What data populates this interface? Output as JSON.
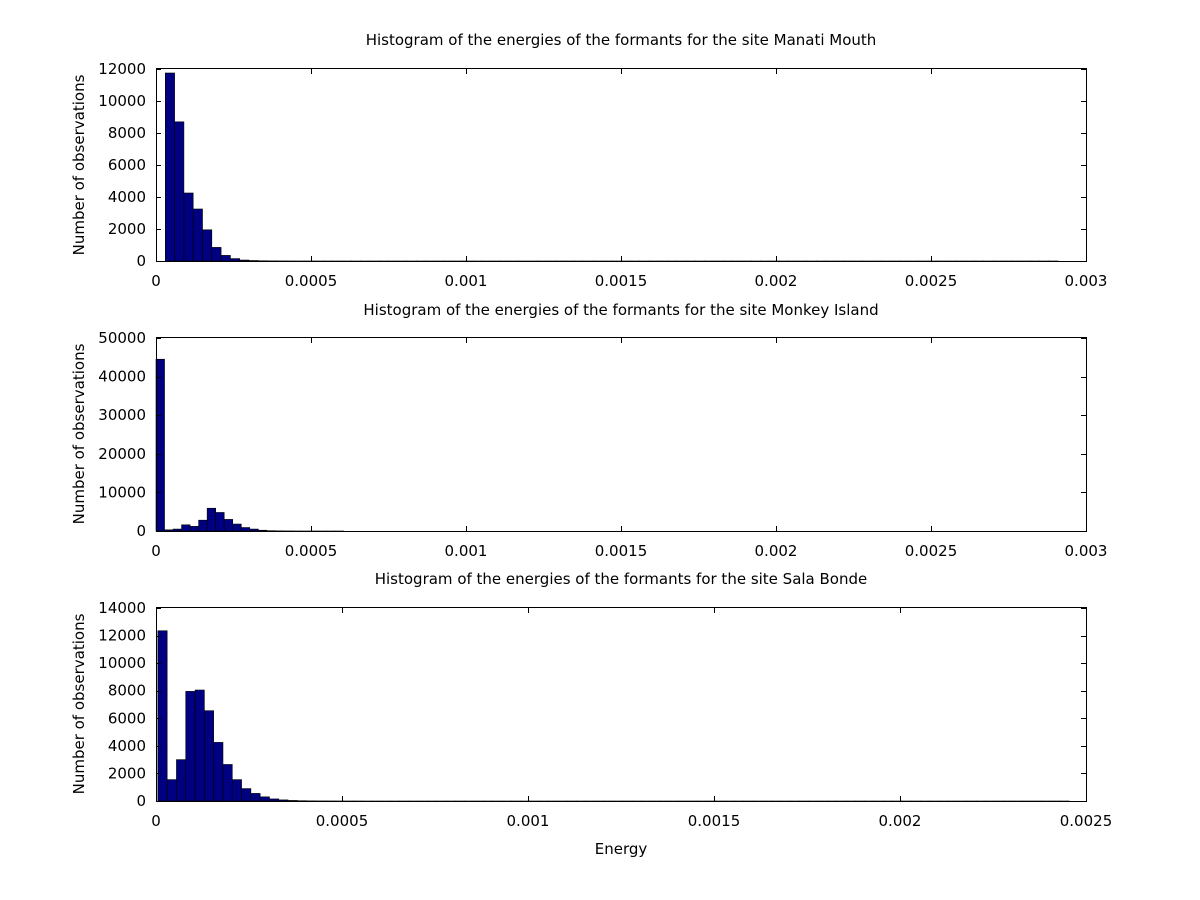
{
  "chart_data": [
    {
      "type": "bar",
      "title": "Histogram of the energies of the formants for the site Manati Mouth",
      "xlabel": "",
      "ylabel": "Number of observations",
      "xlim": [
        0,
        0.003
      ],
      "ylim": [
        0,
        12000
      ],
      "x_ticks": [
        "0",
        "0.0005",
        "0.001",
        "0.0015",
        "0.002",
        "0.0025",
        "0.003"
      ],
      "y_ticks": [
        "0",
        "2000",
        "4000",
        "6000",
        "8000",
        "10000",
        "12000"
      ],
      "bar_color": "#000080",
      "bin_width": 3e-05,
      "bin_start": 3e-05,
      "values": [
        11750,
        8700,
        4250,
        3250,
        1950,
        850,
        350,
        150,
        60,
        30,
        15,
        8,
        5,
        3,
        2,
        2,
        1,
        1,
        1,
        1,
        1,
        1,
        1,
        1,
        1,
        1,
        1,
        1,
        1,
        1,
        1,
        1,
        1,
        1,
        1,
        1,
        1,
        1,
        1,
        1,
        1,
        1,
        1,
        1,
        1,
        1,
        1,
        1,
        1,
        1,
        1,
        1,
        1,
        1,
        1,
        1,
        1,
        1,
        1,
        1,
        1,
        1,
        1,
        1,
        1,
        1,
        1,
        1,
        1,
        1,
        1,
        1,
        1,
        1,
        1,
        1,
        1,
        1,
        1,
        1,
        1,
        1,
        1,
        1,
        1,
        1,
        1,
        1,
        1,
        1,
        1,
        1,
        1,
        1,
        1,
        1
      ]
    },
    {
      "type": "bar",
      "title": "Histogram of the energies of the formants for the site Monkey Island",
      "xlabel": "",
      "ylabel": "Number of observations",
      "xlim": [
        0,
        0.003
      ],
      "ylim": [
        0,
        50000
      ],
      "x_ticks": [
        "0",
        "0.0005",
        "0.001",
        "0.0015",
        "0.002",
        "0.0025",
        "0.003"
      ],
      "y_ticks": [
        "0",
        "10000",
        "20000",
        "30000",
        "40000",
        "50000"
      ],
      "bar_color": "#000080",
      "bin_width": 2.75e-05,
      "bin_start": 0,
      "values": [
        44500,
        300,
        500,
        1600,
        1200,
        2800,
        5900,
        4800,
        3000,
        1800,
        900,
        500,
        200,
        80,
        40,
        20,
        10,
        6,
        4,
        3,
        2,
        2,
        1,
        1,
        1,
        1,
        1,
        1,
        1,
        1,
        1,
        1,
        1,
        1,
        1,
        1,
        1,
        1,
        1,
        1,
        1,
        1,
        1,
        1,
        1,
        1,
        1,
        1,
        1,
        1,
        1,
        1,
        1,
        1,
        1,
        1,
        1,
        1,
        1,
        1,
        1,
        1,
        1,
        1,
        1,
        1,
        1,
        1,
        1,
        1,
        1,
        1,
        1,
        1,
        1,
        1,
        1,
        1,
        1,
        1,
        1,
        1,
        1,
        1,
        1,
        1,
        1,
        1,
        1,
        1,
        1,
        1,
        1,
        1
      ]
    },
    {
      "type": "bar",
      "title": "Histogram of the energies of the formants for the site Sala Bonde",
      "xlabel": "Energy",
      "ylabel": "Number of observations",
      "xlim": [
        0,
        0.0025
      ],
      "ylim": [
        0,
        14000
      ],
      "x_ticks": [
        "0",
        "0.0005",
        "0.001",
        "0.0015",
        "0.002",
        "0.0025"
      ],
      "y_ticks": [
        "0",
        "2000",
        "4000",
        "6000",
        "8000",
        "10000",
        "12000",
        "14000"
      ],
      "bar_color": "#000080",
      "bin_width": 2.5e-05,
      "bin_start": 5e-06,
      "values": [
        12350,
        1550,
        3000,
        7950,
        8050,
        6550,
        4250,
        2650,
        1550,
        900,
        550,
        300,
        150,
        80,
        40,
        20,
        10,
        6,
        4,
        3,
        2,
        2,
        1,
        1,
        1,
        1,
        1,
        1,
        1,
        1,
        1,
        1,
        1,
        1,
        1,
        1,
        1,
        1,
        1,
        1,
        1,
        1,
        1,
        1,
        1,
        1,
        1,
        1,
        1,
        1,
        1,
        1,
        1,
        1,
        1,
        1,
        1,
        1,
        1,
        1,
        1,
        1,
        1,
        1,
        1,
        1,
        1,
        1,
        1,
        1,
        1,
        1,
        1,
        1,
        1,
        1,
        1,
        1,
        1,
        1,
        1,
        1,
        1,
        1,
        1,
        1,
        1,
        1,
        1,
        1,
        1,
        1,
        1,
        1,
        1,
        1,
        1,
        1
      ]
    }
  ]
}
